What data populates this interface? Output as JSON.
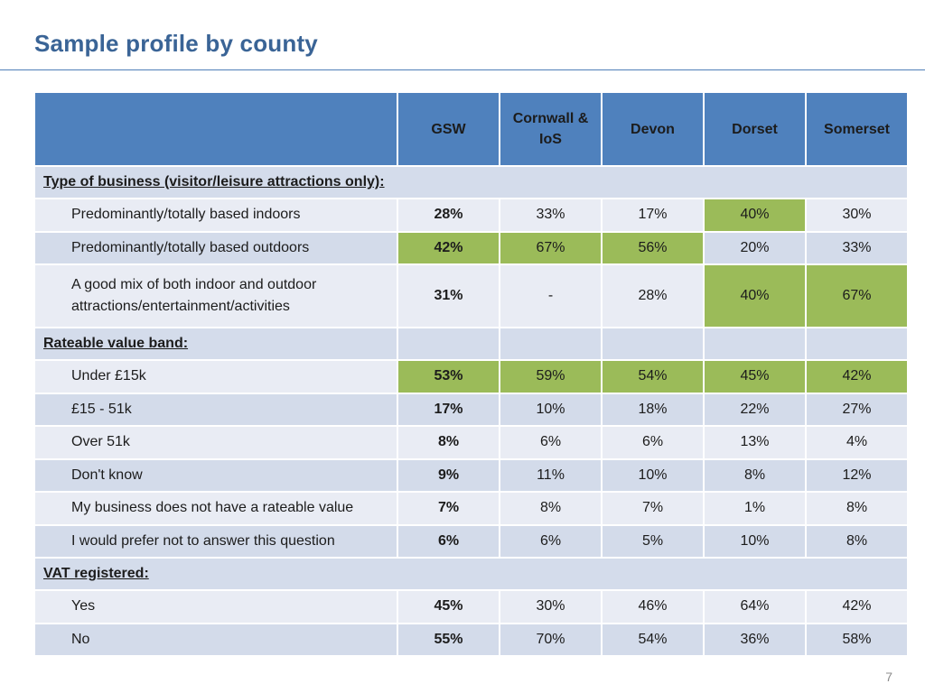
{
  "slide": {
    "title": "Sample profile by county",
    "page_number": "7"
  },
  "table": {
    "columns": [
      "",
      "GSW",
      "Cornwall &\nIoS",
      "Devon",
      "Dorset",
      "Somerset"
    ],
    "highlight_color": "#9bbb59",
    "header_color": "#4f81bd",
    "rows": [
      {
        "type": "section",
        "label": "Type of business (visitor/leisure attractions only):",
        "values": []
      },
      {
        "type": "item",
        "label": "Predominantly/totally based indoors",
        "values": [
          "28%",
          "33%",
          "17%",
          "40%",
          "30%"
        ],
        "highlight": [
          3
        ]
      },
      {
        "type": "item",
        "label": "Predominantly/totally based outdoors",
        "values": [
          "42%",
          "67%",
          "56%",
          "20%",
          "33%"
        ],
        "highlight": [
          0,
          1,
          2
        ]
      },
      {
        "type": "item",
        "tall": true,
        "label": "A good mix of both indoor and outdoor\nattractions/entertainment/activities",
        "values": [
          "31%",
          "-",
          "28%",
          "40%",
          "67%"
        ],
        "highlight": [
          3,
          4
        ]
      },
      {
        "type": "section",
        "label": "Rateable value band:",
        "values": [
          "",
          "",
          "",
          "",
          ""
        ]
      },
      {
        "type": "item",
        "label": "Under £15k",
        "values": [
          "53%",
          "59%",
          "54%",
          "45%",
          "42%"
        ],
        "highlight": [
          0,
          1,
          2,
          3,
          4
        ]
      },
      {
        "type": "item",
        "label": "£15 - 51k",
        "values": [
          "17%",
          "10%",
          "18%",
          "22%",
          "27%"
        ],
        "highlight": []
      },
      {
        "type": "item",
        "label": "Over 51k",
        "values": [
          "8%",
          "6%",
          "6%",
          "13%",
          "4%"
        ],
        "highlight": []
      },
      {
        "type": "item",
        "label": "Don't know",
        "values": [
          "9%",
          "11%",
          "10%",
          "8%",
          "12%"
        ],
        "highlight": []
      },
      {
        "type": "item",
        "label": "My business does not have a rateable value",
        "values": [
          "7%",
          "8%",
          "7%",
          "1%",
          "8%"
        ],
        "highlight": []
      },
      {
        "type": "item",
        "label": "I would prefer not to answer this question",
        "values": [
          "6%",
          "6%",
          "5%",
          "10%",
          "8%"
        ],
        "highlight": []
      },
      {
        "type": "section",
        "label": "VAT registered:",
        "values": []
      },
      {
        "type": "item",
        "label": "Yes",
        "values": [
          "45%",
          "30%",
          "46%",
          "64%",
          "42%"
        ],
        "highlight": []
      },
      {
        "type": "item",
        "label": "No",
        "values": [
          "55%",
          "70%",
          "54%",
          "36%",
          "58%"
        ],
        "highlight": []
      }
    ]
  }
}
